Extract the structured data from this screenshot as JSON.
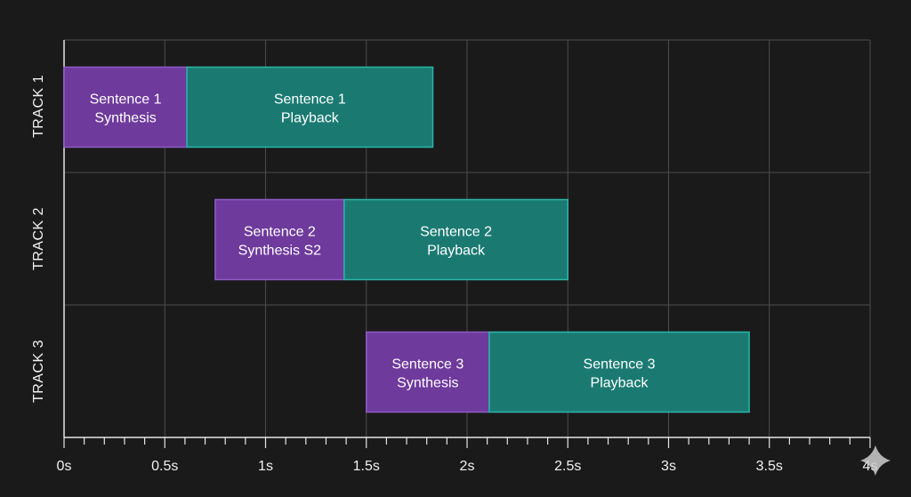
{
  "chart_data": {
    "type": "gantt",
    "title": "",
    "xlabel": "",
    "ylabel": "",
    "xlim": [
      0,
      4
    ],
    "grid": true,
    "tick_values": [
      0,
      0.5,
      1,
      1.5,
      2,
      2.5,
      3,
      3.5,
      4
    ],
    "x_ticks": [
      "0s",
      "0.5s",
      "1s",
      "1.5s",
      "2s",
      "2.5s",
      "3s",
      "3.5s",
      "4s"
    ],
    "tracks": [
      "TRACK 1",
      "TRACK 2",
      "TRACK 3"
    ],
    "tasks": [
      {
        "track": 0,
        "start": 0.0,
        "end": 0.61,
        "kind": "synthesis",
        "label": [
          "Sentence 1",
          "Synthesis"
        ]
      },
      {
        "track": 0,
        "start": 0.61,
        "end": 1.83,
        "kind": "playback",
        "label": [
          "Sentence 1",
          "Playback"
        ]
      },
      {
        "track": 1,
        "start": 0.75,
        "end": 1.39,
        "kind": "synthesis",
        "label": [
          "Sentence 2",
          "Synthesis S2"
        ]
      },
      {
        "track": 1,
        "start": 1.39,
        "end": 2.5,
        "kind": "playback",
        "label": [
          "Sentence 2",
          "Playback"
        ]
      },
      {
        "track": 2,
        "start": 1.5,
        "end": 2.11,
        "kind": "synthesis",
        "label": [
          "Sentence 3",
          "Synthesis"
        ]
      },
      {
        "track": 2,
        "start": 2.11,
        "end": 3.4,
        "kind": "playback",
        "label": [
          "Sentence 3",
          "Playback"
        ]
      }
    ],
    "colors": {
      "synthesis_fill": "#6e3a9c",
      "synthesis_stroke": "#8e5cc4",
      "playback_fill": "#1a7a72",
      "playback_stroke": "#2bb5a9",
      "background": "#1a1a1a"
    }
  }
}
